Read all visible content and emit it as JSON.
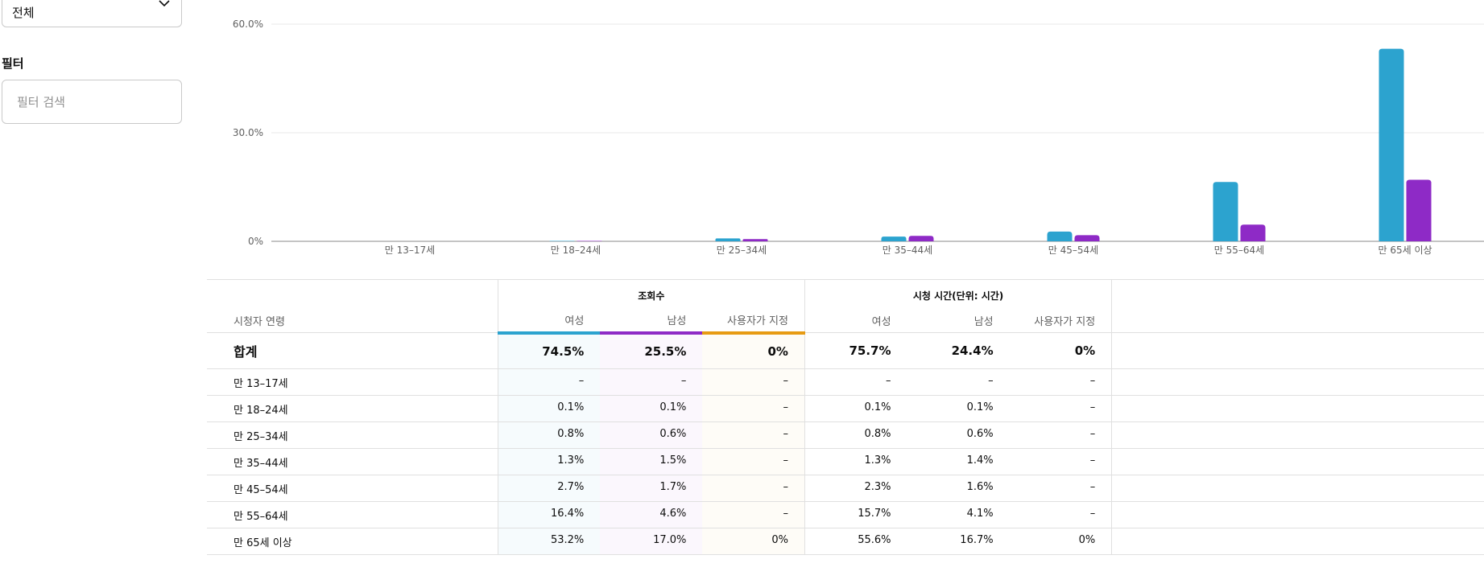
{
  "sidebar": {
    "select_value": "전체",
    "filter_title": "필터",
    "filter_placeholder": "필터 검색"
  },
  "chart_data": {
    "type": "bar",
    "categories": [
      "만 13–17세",
      "만 18–24세",
      "만 25–34세",
      "만 35–44세",
      "만 45–54세",
      "만 55–64세",
      "만 65세 이상"
    ],
    "series": [
      {
        "name": "여성",
        "color": "#2ca3cf",
        "values": [
          0,
          0.1,
          0.8,
          1.3,
          2.7,
          16.4,
          53.2
        ]
      },
      {
        "name": "남성",
        "color": "#8e2ac6",
        "values": [
          0,
          0.1,
          0.6,
          1.5,
          1.7,
          4.6,
          17.0
        ]
      }
    ],
    "yticks": [
      "0%",
      "30.0%",
      "60.0%"
    ],
    "ylim": [
      0,
      60
    ],
    "grid": true
  },
  "table": {
    "group_views": "조회수",
    "group_watch": "시청 시간(단위: 시간)",
    "age_header": "시청자 연령",
    "col_female": "여성",
    "col_male": "남성",
    "col_custom": "사용자가 지정",
    "total": {
      "label": "합계",
      "views": [
        "74.5%",
        "25.5%",
        "0%"
      ],
      "watch": [
        "75.7%",
        "24.4%",
        "0%"
      ]
    },
    "rows": [
      {
        "age": "만 13–17세",
        "views": [
          "–",
          "–",
          "–"
        ],
        "watch": [
          "–",
          "–",
          "–"
        ]
      },
      {
        "age": "만 18–24세",
        "views": [
          "0.1%",
          "0.1%",
          "–"
        ],
        "watch": [
          "0.1%",
          "0.1%",
          "–"
        ]
      },
      {
        "age": "만 25–34세",
        "views": [
          "0.8%",
          "0.6%",
          "–"
        ],
        "watch": [
          "0.8%",
          "0.6%",
          "–"
        ]
      },
      {
        "age": "만 35–44세",
        "views": [
          "1.3%",
          "1.5%",
          "–"
        ],
        "watch": [
          "1.3%",
          "1.4%",
          "–"
        ]
      },
      {
        "age": "만 45–54세",
        "views": [
          "2.7%",
          "1.7%",
          "–"
        ],
        "watch": [
          "2.3%",
          "1.6%",
          "–"
        ]
      },
      {
        "age": "만 55–64세",
        "views": [
          "16.4%",
          "4.6%",
          "–"
        ],
        "watch": [
          "15.7%",
          "4.1%",
          "–"
        ]
      },
      {
        "age": "만 65세 이상",
        "views": [
          "53.2%",
          "17.0%",
          "0%"
        ],
        "watch": [
          "55.6%",
          "16.7%",
          "0%"
        ]
      }
    ]
  }
}
